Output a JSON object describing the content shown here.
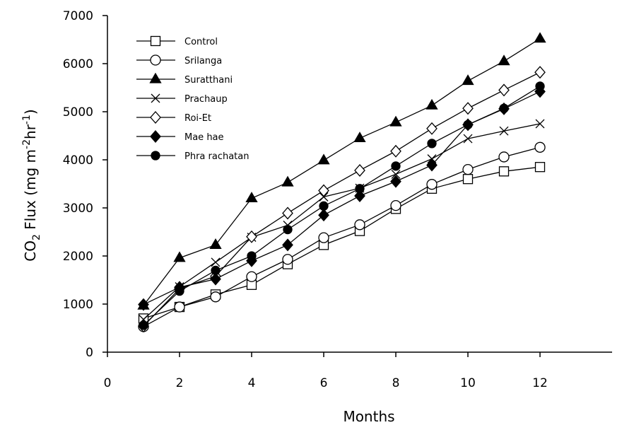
{
  "chart_data": {
    "type": "line",
    "xlabel": "Months",
    "ylabel": "CO2 Flux (mg m-2hr-1)",
    "xlim": [
      0,
      14
    ],
    "ylim": [
      0,
      7000
    ],
    "xticks": [
      0,
      2,
      4,
      6,
      8,
      10,
      12
    ],
    "yticks": [
      0,
      1000,
      2000,
      3000,
      4000,
      5000,
      6000,
      7000
    ],
    "grid": false,
    "legend_position": "top-left",
    "x": [
      1,
      2,
      3,
      4,
      5,
      6,
      7,
      8,
      9,
      10,
      11,
      12
    ],
    "series": [
      {
        "name": "Control",
        "marker": "square-open",
        "values": [
          700,
          940,
          1200,
          1400,
          1830,
          2230,
          2520,
          2980,
          3400,
          3600,
          3760,
          3850
        ]
      },
      {
        "name": "Srilanga",
        "marker": "circle-open",
        "values": [
          530,
          940,
          1150,
          1570,
          1930,
          2380,
          2650,
          3050,
          3490,
          3800,
          4060,
          4260
        ]
      },
      {
        "name": "Suratthani",
        "marker": "triangle-filled",
        "values": [
          970,
          1960,
          2230,
          3200,
          3530,
          3990,
          4450,
          4780,
          5130,
          5640,
          6050,
          6520
        ]
      },
      {
        "name": "Prachaup",
        "marker": "x",
        "values": [
          680,
          1360,
          1870,
          2390,
          2640,
          3230,
          3410,
          3700,
          4020,
          4440,
          4600,
          4750
        ]
      },
      {
        "name": "Roi-Et",
        "marker": "diamond-open",
        "values": [
          540,
          1320,
          1580,
          2400,
          2890,
          3360,
          3780,
          4180,
          4650,
          5070,
          5450,
          5820
        ]
      },
      {
        "name": "Mae hae",
        "marker": "diamond-filled",
        "values": [
          990,
          1350,
          1520,
          1900,
          2230,
          2850,
          3250,
          3550,
          3890,
          4730,
          5060,
          5420
        ]
      },
      {
        "name": "Phra rachatan",
        "marker": "circle-filled",
        "values": [
          560,
          1270,
          1700,
          2000,
          2550,
          3040,
          3400,
          3870,
          4340,
          4730,
          5070,
          5530
        ]
      }
    ]
  }
}
